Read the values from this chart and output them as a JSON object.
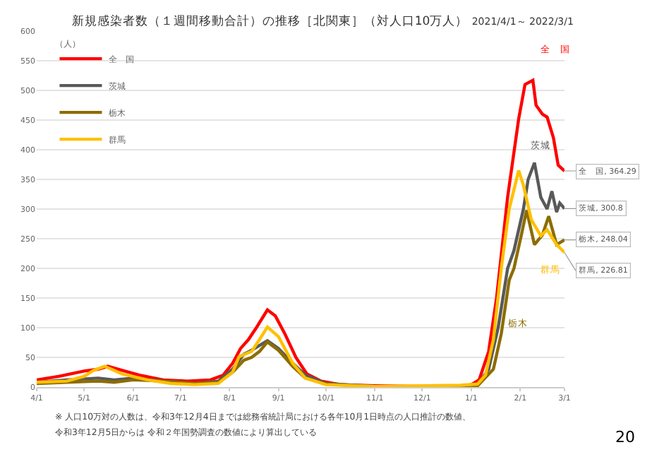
{
  "chart_data": {
    "type": "line",
    "title": "新規感染者数（１週間移動合計）の推移［北関東］（対人口10万人）",
    "subtitle": "2021/4/1～ 2022/3/1",
    "ylabel": "（人）",
    "xlim": [
      "2021-04-01",
      "2022-03-01"
    ],
    "xticks": [
      {
        "value": "2021-04-01",
        "label": "4/1"
      },
      {
        "value": "2021-05-01",
        "label": "5/1"
      },
      {
        "value": "2021-06-01",
        "label": "6/1"
      },
      {
        "value": "2021-07-01",
        "label": "7/1"
      },
      {
        "value": "2021-08-01",
        "label": "8/1"
      },
      {
        "value": "2021-09-01",
        "label": "9/1"
      },
      {
        "value": "2021-10-01",
        "label": "10/1"
      },
      {
        "value": "2021-11-01",
        "label": "11/1"
      },
      {
        "value": "2021-12-01",
        "label": "12/1"
      },
      {
        "value": "2022-01-01",
        "label": "1/1"
      },
      {
        "value": "2022-02-01",
        "label": "2/1"
      },
      {
        "value": "2022-03-01",
        "label": "3/1"
      }
    ],
    "ylim": [
      0,
      600
    ],
    "yticks": [
      0,
      50,
      100,
      150,
      200,
      250,
      300,
      350,
      400,
      450,
      500,
      550,
      600
    ],
    "grid": "y",
    "legend": "top left",
    "marker": "none",
    "line_style": "solid",
    "series": [
      {
        "name": "全　国",
        "color": "#ff0000",
        "x": [
          "2021-04-01",
          "2021-04-15",
          "2021-05-01",
          "2021-05-10",
          "2021-05-16",
          "2021-05-25",
          "2021-06-05",
          "2021-06-20",
          "2021-07-05",
          "2021-07-20",
          "2021-07-28",
          "2021-08-03",
          "2021-08-08",
          "2021-08-13",
          "2021-08-18",
          "2021-08-25",
          "2021-08-30",
          "2021-09-05",
          "2021-09-12",
          "2021-09-19",
          "2021-09-28",
          "2021-10-10",
          "2021-11-01",
          "2021-12-01",
          "2021-12-25",
          "2022-01-01",
          "2022-01-06",
          "2022-01-12",
          "2022-01-17",
          "2022-01-24",
          "2022-01-31",
          "2022-02-04",
          "2022-02-09",
          "2022-02-11",
          "2022-02-15",
          "2022-02-18",
          "2022-02-22",
          "2022-02-25",
          "2022-03-01"
        ],
        "values": [
          12,
          18,
          27,
          30,
          35,
          28,
          20,
          12,
          10,
          12,
          20,
          40,
          65,
          80,
          100,
          130,
          120,
          90,
          50,
          22,
          10,
          4,
          2,
          1,
          2,
          4,
          12,
          60,
          150,
          320,
          452,
          510,
          517,
          475,
          460,
          455,
          420,
          374,
          364.29
        ]
      },
      {
        "name": "茨城",
        "color": "#595959",
        "x": [
          "2021-04-01",
          "2021-04-20",
          "2021-05-10",
          "2021-05-20",
          "2021-06-01",
          "2021-06-20",
          "2021-07-10",
          "2021-07-25",
          "2021-08-03",
          "2021-08-10",
          "2021-08-15",
          "2021-08-20",
          "2021-08-25",
          "2021-09-01",
          "2021-09-10",
          "2021-09-18",
          "2021-10-01",
          "2021-11-01",
          "2021-12-15",
          "2022-01-05",
          "2022-01-12",
          "2022-01-18",
          "2022-01-24",
          "2022-01-28",
          "2022-02-03",
          "2022-02-06",
          "2022-02-10",
          "2022-02-14",
          "2022-02-18",
          "2022-02-21",
          "2022-02-24",
          "2022-02-26",
          "2022-03-01"
        ],
        "values": [
          8,
          12,
          15,
          12,
          15,
          10,
          6,
          10,
          30,
          55,
          62,
          70,
          78,
          65,
          40,
          20,
          6,
          1,
          1,
          3,
          30,
          100,
          200,
          230,
          300,
          350,
          378,
          320,
          300,
          330,
          295,
          310,
          300.8
        ]
      },
      {
        "name": "栃木",
        "color": "#8c6d00",
        "x": [
          "2021-04-01",
          "2021-04-20",
          "2021-05-10",
          "2021-05-20",
          "2021-06-01",
          "2021-06-20",
          "2021-07-10",
          "2021-07-25",
          "2021-08-03",
          "2021-08-10",
          "2021-08-15",
          "2021-08-20",
          "2021-08-25",
          "2021-09-01",
          "2021-09-10",
          "2021-09-18",
          "2021-10-01",
          "2021-11-01",
          "2021-12-15",
          "2022-01-05",
          "2022-01-15",
          "2022-01-20",
          "2022-01-25",
          "2022-01-28",
          "2022-02-02",
          "2022-02-05",
          "2022-02-10",
          "2022-02-15",
          "2022-02-19",
          "2022-02-24",
          "2022-03-01"
        ],
        "values": [
          6,
          8,
          10,
          8,
          12,
          10,
          6,
          8,
          25,
          45,
          50,
          60,
          76,
          62,
          35,
          15,
          5,
          1,
          1,
          2,
          30,
          90,
          180,
          200,
          260,
          298,
          240,
          256,
          288,
          240,
          248.04
        ]
      },
      {
        "name": "群馬",
        "color": "#ffc000",
        "x": [
          "2021-04-01",
          "2021-04-20",
          "2021-05-01",
          "2021-05-07",
          "2021-05-14",
          "2021-05-25",
          "2021-06-10",
          "2021-06-25",
          "2021-07-10",
          "2021-07-25",
          "2021-08-03",
          "2021-08-07",
          "2021-08-15",
          "2021-08-20",
          "2021-08-25",
          "2021-09-01",
          "2021-09-10",
          "2021-09-18",
          "2021-10-01",
          "2021-11-01",
          "2021-12-01",
          "2021-12-25",
          "2022-01-05",
          "2022-01-10",
          "2022-01-15",
          "2022-01-20",
          "2022-01-25",
          "2022-01-31",
          "2022-02-03",
          "2022-02-08",
          "2022-02-14",
          "2022-02-18",
          "2022-02-24",
          "2022-03-01"
        ],
        "values": [
          8,
          10,
          18,
          28,
          35,
          22,
          12,
          6,
          4,
          6,
          25,
          51,
          60,
          80,
          101,
          85,
          40,
          15,
          4,
          1,
          2,
          3,
          5,
          20,
          80,
          200,
          300,
          365,
          340,
          282,
          255,
          265,
          240,
          226.81
        ]
      }
    ],
    "annotations": [
      {
        "text": "全　国, 364.29",
        "x": "2022-03-01",
        "y": 364.29
      },
      {
        "text": "茨城, 300.8",
        "x": "2022-03-01",
        "y": 300.8
      },
      {
        "text": "栃木, 248.04",
        "x": "2022-03-01",
        "y": 248.04
      },
      {
        "text": "群馬, 226.81",
        "x": "2022-03-01",
        "y": 226.81
      },
      "※ 人口10万対の人数は、令和3年12月4日までは総務省統計局における各年10月1日時点の人口推計の数値、",
      "令和3年12月5日からは 令和２年国勢調査の数値により算出している",
      "20"
    ]
  }
}
